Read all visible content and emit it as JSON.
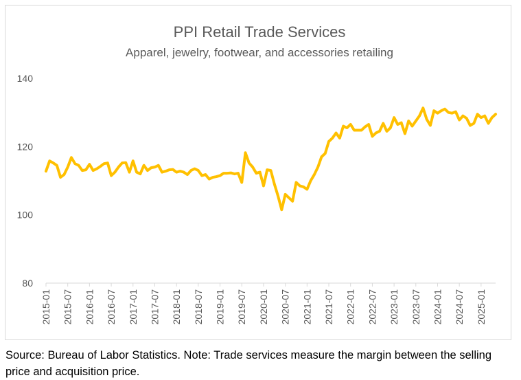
{
  "caption": "Source: Bureau of Labor Statistics. Note: Trade services measure the margin between the selling price and acquisition price.",
  "chart_data": {
    "type": "line",
    "title": "PPI Retail Trade Services",
    "subtitle": "Apparel, jewelry, footwear, and accessories retailing",
    "xlabel": "",
    "ylabel": "",
    "ylim": [
      80,
      140
    ],
    "yticks": [
      80,
      100,
      120,
      140
    ],
    "grid": false,
    "legend": "none",
    "line_color": "#ffc000",
    "xtick_labels": [
      "2015-01",
      "2015-07",
      "2016-01",
      "2016-07",
      "2017-01",
      "2017-07",
      "2018-01",
      "2018-07",
      "2019-01",
      "2019-07",
      "2020-01",
      "2020-07",
      "2021-01",
      "2021-07",
      "2022-01",
      "2022-07",
      "2023-01",
      "2023-07",
      "2024-01",
      "2024-07",
      "2025-01"
    ],
    "x_start": "2015-01",
    "values": [
      112.8,
      115.8,
      115.2,
      114.5,
      111.0,
      111.8,
      114.0,
      116.8,
      115.0,
      114.5,
      113.0,
      113.2,
      114.8,
      113.0,
      113.5,
      114.2,
      115.0,
      115.2,
      111.5,
      112.5,
      114.0,
      115.2,
      115.3,
      112.5,
      115.8,
      112.5,
      112.0,
      114.5,
      113.0,
      113.8,
      114.0,
      114.5,
      112.5,
      112.8,
      113.2,
      113.3,
      112.5,
      112.8,
      112.5,
      111.8,
      113.0,
      113.5,
      113.0,
      111.5,
      111.8,
      110.5,
      111.0,
      111.2,
      111.5,
      112.2,
      112.2,
      112.3,
      112.0,
      112.2,
      109.5,
      118.2,
      115.2,
      114.0,
      112.2,
      112.5,
      108.5,
      113.2,
      113.0,
      109.0,
      105.5,
      101.5,
      106.0,
      105.0,
      104.0,
      109.5,
      108.5,
      108.2,
      107.5,
      110.0,
      111.8,
      114.0,
      117.0,
      118.0,
      121.5,
      122.5,
      124.0,
      122.5,
      126.0,
      125.5,
      126.5,
      124.8,
      124.8,
      124.8,
      125.8,
      126.5,
      123.0,
      124.0,
      124.5,
      126.8,
      124.5,
      125.5,
      128.5,
      126.5,
      127.0,
      123.8,
      127.5,
      126.0,
      127.5,
      129.0,
      131.3,
      128.0,
      126.2,
      130.5,
      129.8,
      130.5,
      131.0,
      130.0,
      129.8,
      130.2,
      127.8,
      129.0,
      128.3,
      126.2,
      126.8,
      129.5,
      128.5,
      129.0,
      126.8,
      128.5,
      129.5
    ]
  }
}
